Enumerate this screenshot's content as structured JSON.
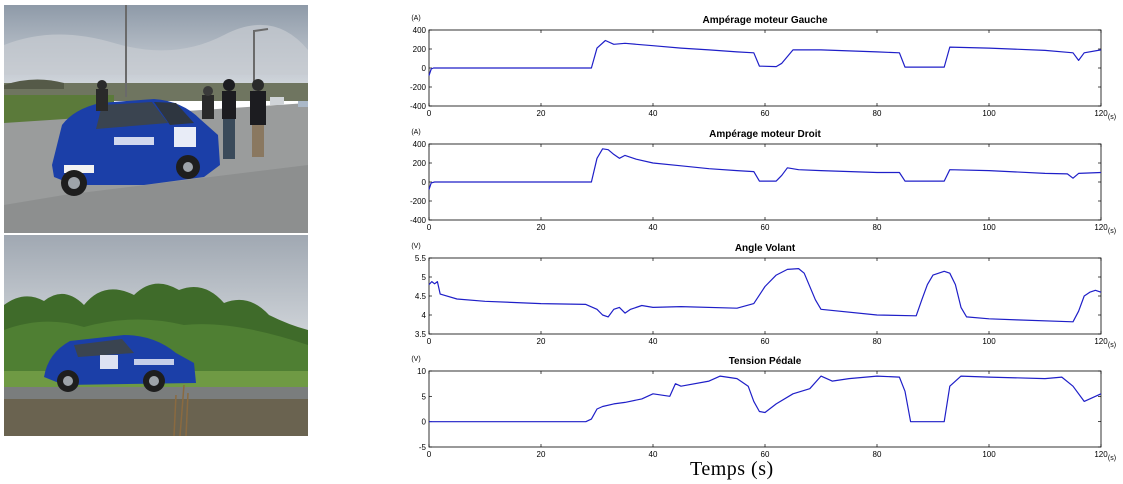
{
  "photos": [
    {
      "name": "rally-car-on-tarmac-with-team"
    },
    {
      "name": "rally-car-driving-in-field"
    }
  ],
  "chart_data": [
    {
      "type": "line",
      "title": "Ampérage moteur Gauche",
      "ylabel": "(A)",
      "xunit": "(s)",
      "xlim": [
        0,
        120
      ],
      "ylim": [
        -400,
        400
      ],
      "xticks": [
        0,
        20,
        40,
        60,
        80,
        100,
        120
      ],
      "yticks": [
        -400,
        -200,
        0,
        200,
        400
      ],
      "grid": false,
      "series": [
        {
          "color": "#1f1fc8",
          "x": [
            0,
            0.4,
            0.8,
            2,
            29,
            30,
            31.5,
            33,
            35,
            37,
            40,
            45,
            50,
            55,
            58,
            59,
            62,
            63,
            65,
            70,
            80,
            84,
            85,
            92,
            93,
            100,
            110,
            114,
            115,
            116,
            117,
            120
          ],
          "y": [
            -80,
            -10,
            0,
            0,
            0,
            210,
            290,
            250,
            260,
            250,
            235,
            210,
            190,
            170,
            160,
            20,
            15,
            50,
            190,
            190,
            170,
            160,
            10,
            10,
            220,
            210,
            185,
            165,
            160,
            80,
            160,
            190
          ]
        }
      ]
    },
    {
      "type": "line",
      "title": "Ampérage moteur Droit",
      "ylabel": "(A)",
      "xunit": "(s)",
      "xlim": [
        0,
        120
      ],
      "ylim": [
        -400,
        400
      ],
      "xticks": [
        0,
        20,
        40,
        60,
        80,
        100,
        120
      ],
      "yticks": [
        -400,
        -200,
        0,
        200,
        400
      ],
      "grid": false,
      "series": [
        {
          "color": "#1f1fc8",
          "x": [
            0,
            0.4,
            1,
            2,
            29,
            30,
            31,
            32,
            33,
            34,
            35,
            37,
            40,
            45,
            50,
            55,
            58,
            59,
            62,
            63,
            64,
            66,
            70,
            80,
            84,
            85,
            92,
            93,
            100,
            110,
            114,
            115,
            116,
            120
          ],
          "y": [
            -80,
            -10,
            0,
            0,
            0,
            250,
            350,
            340,
            290,
            250,
            280,
            240,
            200,
            170,
            140,
            120,
            110,
            10,
            10,
            70,
            150,
            130,
            120,
            100,
            100,
            10,
            10,
            130,
            120,
            90,
            85,
            40,
            90,
            100
          ]
        }
      ]
    },
    {
      "type": "line",
      "title": "Angle Volant",
      "ylabel": "(V)",
      "xunit": "(s)",
      "xlim": [
        0,
        120
      ],
      "ylim": [
        3.5,
        5.5
      ],
      "xticks": [
        0,
        20,
        40,
        60,
        80,
        100,
        120
      ],
      "yticks": [
        3.5,
        4,
        4.5,
        5,
        5.5
      ],
      "grid": false,
      "series": [
        {
          "color": "#1f1fc8",
          "x": [
            0,
            0.5,
            1,
            1.5,
            2,
            5,
            10,
            20,
            28,
            30,
            31,
            32,
            33,
            34,
            35,
            36,
            38,
            40,
            45,
            55,
            58,
            60,
            62,
            64,
            66,
            67,
            69,
            70,
            80,
            87,
            88,
            89,
            90,
            92,
            93,
            94,
            95,
            96,
            100,
            105,
            115,
            116,
            117,
            118,
            119,
            120
          ],
          "y": [
            4.8,
            4.88,
            4.82,
            4.88,
            4.55,
            4.42,
            4.36,
            4.3,
            4.28,
            4.15,
            4.0,
            3.95,
            4.15,
            4.2,
            4.05,
            4.15,
            4.25,
            4.2,
            4.22,
            4.18,
            4.3,
            4.75,
            5.05,
            5.2,
            5.22,
            5.1,
            4.4,
            4.15,
            4.0,
            3.98,
            4.4,
            4.8,
            5.05,
            5.15,
            5.1,
            4.8,
            4.2,
            3.95,
            3.9,
            3.87,
            3.82,
            4.1,
            4.5,
            4.6,
            4.65,
            4.6
          ]
        }
      ]
    },
    {
      "type": "line",
      "title": "Tension Pédale",
      "ylabel": "(V)",
      "xunit": "(s)",
      "xlim": [
        0,
        120
      ],
      "ylim": [
        -5,
        10
      ],
      "xticks": [
        0,
        20,
        40,
        60,
        80,
        100,
        120
      ],
      "yticks": [
        -5,
        0,
        5,
        10
      ],
      "grid": false,
      "series": [
        {
          "color": "#1f1fc8",
          "x": [
            0,
            10,
            20,
            28,
            29,
            30,
            31,
            33,
            35,
            38,
            40,
            43,
            44,
            45,
            50,
            52,
            55,
            57,
            58,
            59,
            60,
            62,
            65,
            68,
            70,
            72,
            75,
            80,
            84,
            85,
            86,
            92,
            93,
            95,
            100,
            110,
            113,
            115,
            117,
            120
          ],
          "y": [
            0,
            0,
            0,
            0,
            0.5,
            2.5,
            3,
            3.5,
            3.8,
            4.5,
            5.5,
            5,
            7.5,
            7,
            8,
            9,
            8.5,
            7,
            4,
            2,
            1.8,
            3.5,
            5.5,
            6.5,
            9,
            8,
            8.5,
            9,
            8.8,
            6,
            0,
            0,
            7,
            9,
            8.8,
            8.5,
            8.8,
            7,
            4,
            5.5
          ]
        }
      ]
    }
  ],
  "shared_xlabel": "Temps (s)"
}
